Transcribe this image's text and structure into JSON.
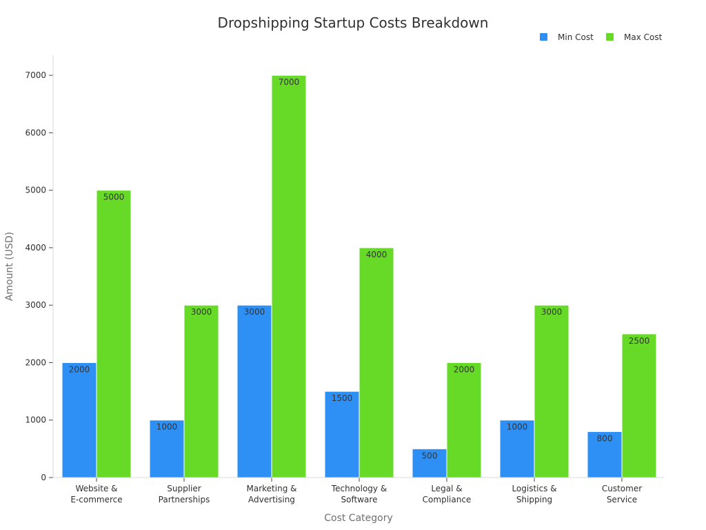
{
  "chart_data": {
    "type": "bar",
    "title": "Dropshipping Startup Costs Breakdown",
    "xlabel": "Cost Category",
    "ylabel": "Amount (USD)",
    "categories": [
      [
        "Website &",
        "E-commerce"
      ],
      [
        "Supplier",
        "Partnerships"
      ],
      [
        "Marketing &",
        "Advertising"
      ],
      [
        "Technology &",
        "Software"
      ],
      [
        "Legal &",
        "Compliance"
      ],
      [
        "Logistics &",
        "Shipping"
      ],
      [
        "Customer",
        "Service"
      ]
    ],
    "series": [
      {
        "name": "Min Cost",
        "color": "#2E90F5",
        "values": [
          2000,
          1000,
          3000,
          1500,
          500,
          1000,
          800
        ]
      },
      {
        "name": "Max Cost",
        "color": "#66DA26",
        "values": [
          5000,
          3000,
          7000,
          4000,
          2000,
          3000,
          2500
        ]
      }
    ],
    "ylim": [
      0,
      7350
    ],
    "yticks": [
      0,
      1000,
      2000,
      3000,
      4000,
      5000,
      6000,
      7000
    ],
    "legend_position": "top-right",
    "grid": false
  }
}
